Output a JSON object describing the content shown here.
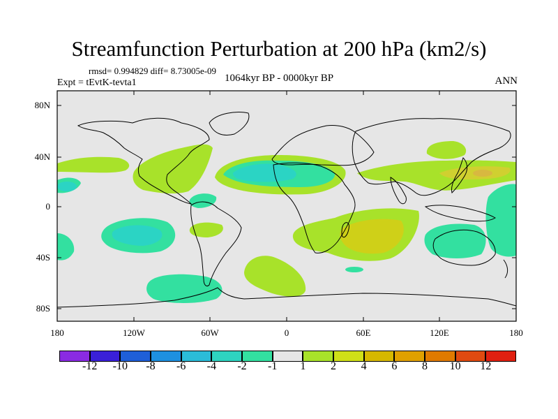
{
  "title": "Streamfunction Perturbation at 200 hPa (km2/s)",
  "stats": "rmsd= 0.994829 diff= 8.73005e-09",
  "expt": "Expt = tEvtK-tevta1",
  "period": "1064kyr BP - 0000kyr BP",
  "season": "ANN",
  "lat_labels": [
    "80N",
    "40N",
    "0",
    "40S",
    "80S"
  ],
  "lon_labels": [
    "180",
    "120W",
    "60W",
    "0",
    "60E",
    "120E",
    "180"
  ],
  "colorbar": {
    "colors": [
      "#8a2be2",
      "#3a20d8",
      "#1f5fd8",
      "#1e90e0",
      "#2bbcd8",
      "#2ed3c0",
      "#33e0a0",
      "#e6e6e6",
      "#a8e22a",
      "#cfe018",
      "#d6b800",
      "#e0a000",
      "#e07a00",
      "#e04a10",
      "#e02010"
    ],
    "labels": [
      "-12",
      "-10",
      "-8",
      "-6",
      "-4",
      "-2",
      "-1",
      "1",
      "2",
      "4",
      "6",
      "8",
      "10",
      "12"
    ]
  },
  "map_colors": {
    "background": "#e6e6e6",
    "neg1": "#33e0a0",
    "neg2": "#2bd4c4",
    "pos1": "#a8e22a",
    "pos2": "#cfd018",
    "pos4": "#d8b840"
  }
}
